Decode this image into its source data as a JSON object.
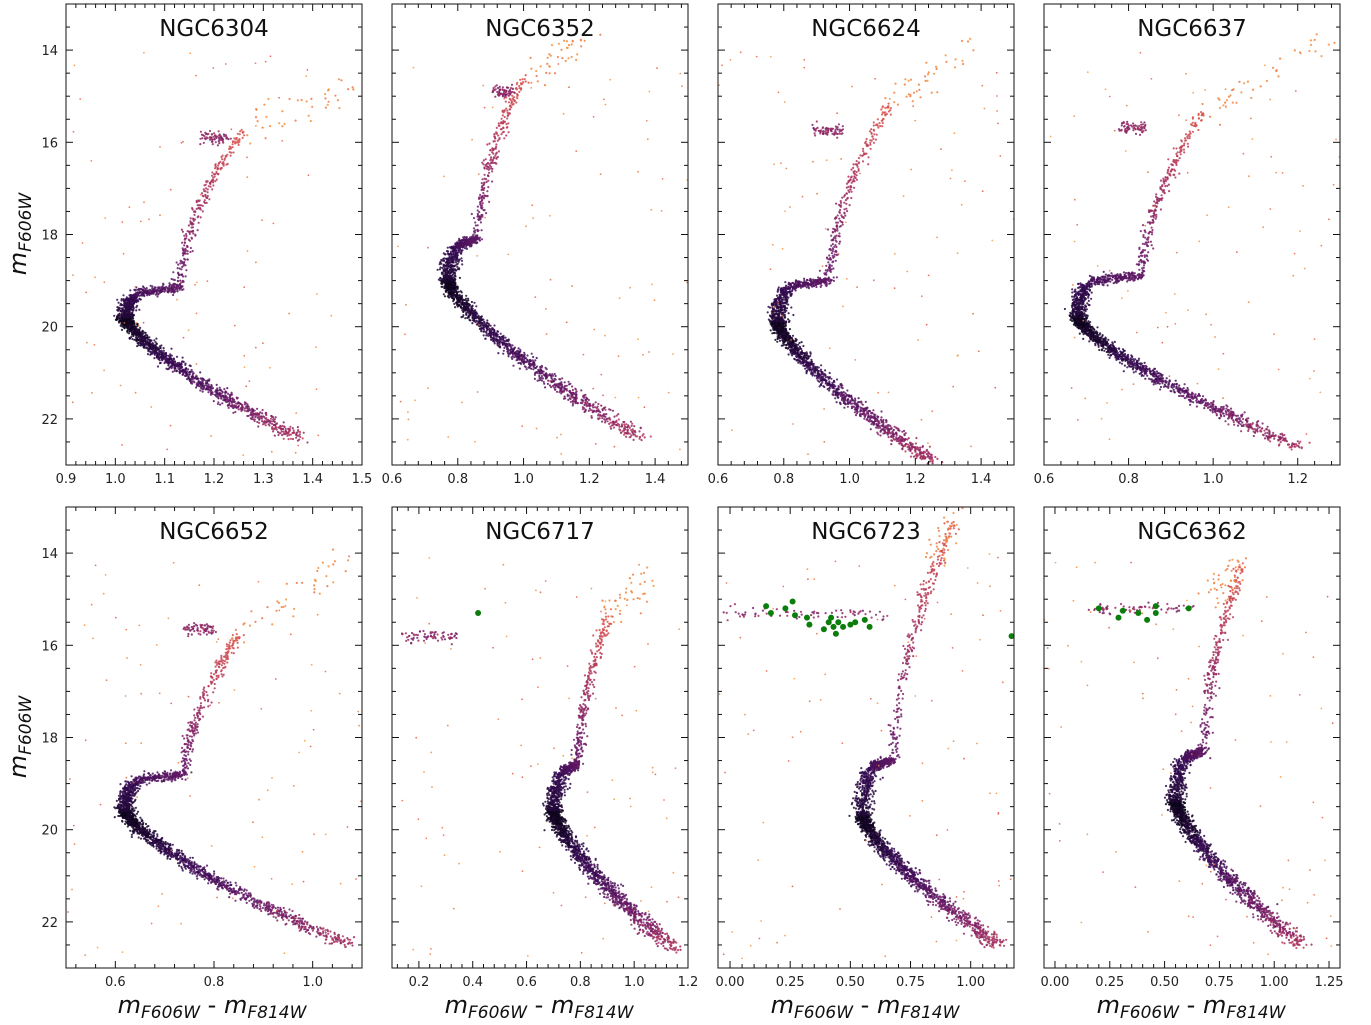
{
  "figure": {
    "xlabel_main": "m",
    "xlabel_sub1": "F606W",
    "xlabel_sep": " - ",
    "xlabel_sub2": "F814W",
    "ylabel_main": "m",
    "ylabel_sub": "F606W"
  },
  "chart_data": [
    {
      "type": "scatter",
      "title": "NGC6304",
      "xlim": [
        0.9,
        1.5
      ],
      "ylim": [
        23.0,
        13.0
      ],
      "xticks": [
        0.9,
        1.0,
        1.1,
        1.2,
        1.3,
        1.4,
        1.5
      ],
      "xtick_labels": [
        "0.9",
        "1.0",
        "1.1",
        "1.2",
        "1.3",
        "1.4",
        "1.5"
      ],
      "yticks": [
        14,
        16,
        18,
        20,
        22
      ],
      "ytick_labels": [
        "14",
        "16",
        "18",
        "20",
        "22"
      ],
      "msto": {
        "c": 1.02,
        "m": 19.8
      },
      "sgb_end": {
        "c": 1.13,
        "m": 19.15
      },
      "ms_end": {
        "c": 1.37,
        "m": 22.4
      },
      "hb": {
        "c0": 1.17,
        "c1": 1.23,
        "m": 15.9
      },
      "rgb_tip": {
        "c": 1.26,
        "m": 15.7
      },
      "agb_tip": {
        "c": 1.48,
        "m": 14.8
      },
      "green_points": []
    },
    {
      "type": "scatter",
      "title": "NGC6352",
      "xlim": [
        0.6,
        1.5
      ],
      "ylim": [
        23.0,
        13.0
      ],
      "xticks": [
        0.6,
        0.8,
        1.0,
        1.2,
        1.4
      ],
      "xtick_labels": [
        "0.6",
        "0.8",
        "1.0",
        "1.2",
        "1.4"
      ],
      "yticks": [
        14,
        16,
        18,
        20,
        22
      ],
      "ytick_labels": [
        "14",
        "16",
        "18",
        "20",
        "22"
      ],
      "msto": {
        "c": 0.77,
        "m": 19.0
      },
      "sgb_end": {
        "c": 0.86,
        "m": 18.1
      },
      "ms_end": {
        "c": 1.35,
        "m": 22.4
      },
      "hb": {
        "c0": 0.91,
        "c1": 0.97,
        "m": 14.9
      },
      "rgb_tip": {
        "c": 1.0,
        "m": 14.6
      },
      "agb_tip": {
        "c": 1.2,
        "m": 13.8
      },
      "green_points": []
    },
    {
      "type": "scatter",
      "title": "NGC6624",
      "xlim": [
        0.6,
        1.5
      ],
      "ylim": [
        23.0,
        13.0
      ],
      "xticks": [
        0.6,
        0.8,
        1.0,
        1.2,
        1.4
      ],
      "xtick_labels": [
        "0.6",
        "0.8",
        "1.0",
        "1.2",
        "1.4"
      ],
      "yticks": [
        14,
        16,
        18,
        20,
        22
      ],
      "ytick_labels": [
        "14",
        "16",
        "18",
        "20",
        "22"
      ],
      "msto": {
        "c": 0.78,
        "m": 19.9
      },
      "sgb_end": {
        "c": 0.94,
        "m": 19.0
      },
      "ms_end": {
        "c": 1.25,
        "m": 22.9
      },
      "hb": {
        "c0": 0.89,
        "c1": 0.98,
        "m": 15.75
      },
      "rgb_tip": {
        "c": 1.12,
        "m": 15.2
      },
      "agb_tip": {
        "c": 1.38,
        "m": 13.9
      },
      "green_points": []
    },
    {
      "type": "scatter",
      "title": "NGC6637",
      "xlim": [
        0.6,
        1.3
      ],
      "ylim": [
        23.0,
        13.0
      ],
      "xticks": [
        0.6,
        0.8,
        1.0,
        1.2
      ],
      "xtick_labels": [
        "0.6",
        "0.8",
        "1.0",
        "1.2"
      ],
      "yticks": [
        14,
        16,
        18,
        20,
        22
      ],
      "ytick_labels": [
        "14",
        "16",
        "18",
        "20",
        "22"
      ],
      "msto": {
        "c": 0.68,
        "m": 19.8
      },
      "sgb_end": {
        "c": 0.83,
        "m": 18.9
      },
      "ms_end": {
        "c": 1.2,
        "m": 22.6
      },
      "hb": {
        "c0": 0.78,
        "c1": 0.84,
        "m": 15.7
      },
      "rgb_tip": {
        "c": 0.98,
        "m": 15.3
      },
      "agb_tip": {
        "c": 1.27,
        "m": 13.8
      },
      "green_points": []
    },
    {
      "type": "scatter",
      "title": "NGC6652",
      "xlim": [
        0.5,
        1.1
      ],
      "ylim": [
        23.0,
        13.0
      ],
      "xticks": [
        0.6,
        0.8,
        1.0
      ],
      "xtick_labels": [
        "0.6",
        "0.8",
        "1.0"
      ],
      "yticks": [
        14,
        16,
        18,
        20,
        22
      ],
      "ytick_labels": [
        "14",
        "16",
        "18",
        "20",
        "22"
      ],
      "msto": {
        "c": 0.62,
        "m": 19.6
      },
      "sgb_end": {
        "c": 0.74,
        "m": 18.8
      },
      "ms_end": {
        "c": 1.07,
        "m": 22.5
      },
      "hb": {
        "c0": 0.74,
        "c1": 0.8,
        "m": 15.65
      },
      "rgb_tip": {
        "c": 0.85,
        "m": 15.8
      },
      "agb_tip": {
        "c": 1.08,
        "m": 14.1
      },
      "green_points": []
    },
    {
      "type": "scatter",
      "title": "NGC6717",
      "xlim": [
        0.1,
        1.2
      ],
      "ylim": [
        23.0,
        13.0
      ],
      "xticks": [
        0.2,
        0.4,
        0.6,
        0.8,
        1.0,
        1.2
      ],
      "xtick_labels": [
        "0.2",
        "0.4",
        "0.6",
        "0.8",
        "1.0",
        "1.2"
      ],
      "yticks": [
        14,
        16,
        18,
        20,
        22
      ],
      "ytick_labels": [
        "14",
        "16",
        "18",
        "20",
        "22"
      ],
      "msto": {
        "c": 0.7,
        "m": 19.6
      },
      "sgb_end": {
        "c": 0.79,
        "m": 18.6
      },
      "ms_end": {
        "c": 1.15,
        "m": 22.6
      },
      "hb": {
        "c0": 0.13,
        "c1": 0.34,
        "m": 15.8
      },
      "rgb_tip": {
        "c": 0.9,
        "m": 15.4
      },
      "agb_tip": {
        "c": 1.05,
        "m": 14.5
      },
      "green_points": [
        {
          "x": 0.42,
          "y": 15.3
        }
      ]
    },
    {
      "type": "scatter",
      "title": "NGC6723",
      "xlim": [
        -0.05,
        1.18
      ],
      "ylim": [
        23.0,
        13.0
      ],
      "xticks": [
        0.0,
        0.25,
        0.5,
        0.75,
        1.0
      ],
      "xtick_labels": [
        "0.00",
        "0.25",
        "0.50",
        "0.75",
        "1.00"
      ],
      "yticks": [
        14,
        16,
        18,
        20,
        22
      ],
      "ytick_labels": [
        "14",
        "16",
        "18",
        "20",
        "22"
      ],
      "msto": {
        "c": 0.55,
        "m": 19.7
      },
      "sgb_end": {
        "c": 0.68,
        "m": 18.5
      },
      "ms_end": {
        "c": 1.12,
        "m": 22.5
      },
      "hb": {
        "c0": -0.03,
        "c1": 0.65,
        "m": 15.3
      },
      "rgb_tip": {
        "c": 0.93,
        "m": 13.3
      },
      "agb_tip": {
        "c": 0.85,
        "m": 14.1
      },
      "green_points": [
        {
          "x": 0.15,
          "y": 15.15
        },
        {
          "x": 0.17,
          "y": 15.3
        },
        {
          "x": 0.23,
          "y": 15.2
        },
        {
          "x": 0.26,
          "y": 15.05
        },
        {
          "x": 0.27,
          "y": 15.35
        },
        {
          "x": 0.32,
          "y": 15.4
        },
        {
          "x": 0.33,
          "y": 15.55
        },
        {
          "x": 0.39,
          "y": 15.65
        },
        {
          "x": 0.41,
          "y": 15.5
        },
        {
          "x": 0.42,
          "y": 15.4
        },
        {
          "x": 0.43,
          "y": 15.6
        },
        {
          "x": 0.44,
          "y": 15.75
        },
        {
          "x": 0.45,
          "y": 15.5
        },
        {
          "x": 0.47,
          "y": 15.6
        },
        {
          "x": 0.5,
          "y": 15.55
        },
        {
          "x": 0.52,
          "y": 15.5
        },
        {
          "x": 0.56,
          "y": 15.45
        },
        {
          "x": 0.58,
          "y": 15.6
        },
        {
          "x": 1.17,
          "y": 15.8
        }
      ]
    },
    {
      "type": "scatter",
      "title": "NGC6362",
      "xlim": [
        -0.05,
        1.3
      ],
      "ylim": [
        23.0,
        13.0
      ],
      "xticks": [
        0.0,
        0.25,
        0.5,
        0.75,
        1.0,
        1.25
      ],
      "xtick_labels": [
        "0.00",
        "0.25",
        "0.50",
        "0.75",
        "1.00",
        "1.25"
      ],
      "yticks": [
        14,
        16,
        18,
        20,
        22
      ],
      "ytick_labels": [
        "14",
        "16",
        "18",
        "20",
        "22"
      ],
      "msto": {
        "c": 0.55,
        "m": 19.4
      },
      "sgb_end": {
        "c": 0.68,
        "m": 18.3
      },
      "ms_end": {
        "c": 1.12,
        "m": 22.5
      },
      "hb": {
        "c0": 0.15,
        "c1": 0.65,
        "m": 15.2
      },
      "rgb_tip": {
        "c": 0.85,
        "m": 14.3
      },
      "agb_tip": {
        "c": 0.7,
        "m": 15.0
      },
      "green_points": [
        {
          "x": 0.2,
          "y": 15.2
        },
        {
          "x": 0.29,
          "y": 15.4
        },
        {
          "x": 0.31,
          "y": 15.25
        },
        {
          "x": 0.38,
          "y": 15.3
        },
        {
          "x": 0.42,
          "y": 15.45
        },
        {
          "x": 0.46,
          "y": 15.15
        },
        {
          "x": 0.46,
          "y": 15.3
        },
        {
          "x": 0.61,
          "y": 15.2
        }
      ]
    }
  ]
}
